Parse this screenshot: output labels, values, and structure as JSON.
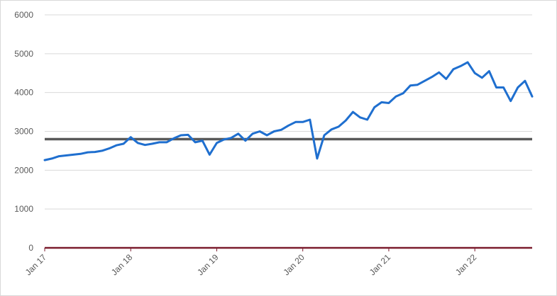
{
  "chart_data": {
    "type": "line",
    "title": "",
    "xlabel": "",
    "ylabel": "",
    "ylim": [
      0,
      6000
    ],
    "yticks": [
      0,
      1000,
      2000,
      3000,
      4000,
      5000,
      6000
    ],
    "xlim": [
      "2017-01",
      "2022-09"
    ],
    "xticks": [
      {
        "label": "Jan 17",
        "x": "2017-01"
      },
      {
        "label": "Jan 18",
        "x": "2018-01"
      },
      {
        "label": "Jan 19",
        "x": "2019-01"
      },
      {
        "label": "Jan 20",
        "x": "2020-01"
      },
      {
        "label": "Jan 21",
        "x": "2021-01"
      },
      {
        "label": "Jan 22",
        "x": "2022-01"
      }
    ],
    "grid": true,
    "legend": "none",
    "colors": {
      "series": "#1f6fcf",
      "reference": "#595959",
      "zero_line": "#7b1c2e",
      "grid": "#d9d9d9"
    },
    "reference_line": {
      "y": 2800
    },
    "series": [
      {
        "x": [
          "2017-01",
          "2017-02",
          "2017-03",
          "2017-04",
          "2017-05",
          "2017-06",
          "2017-07",
          "2017-08",
          "2017-09",
          "2017-10",
          "2017-11",
          "2017-12",
          "2018-01",
          "2018-02",
          "2018-03",
          "2018-04",
          "2018-05",
          "2018-06",
          "2018-07",
          "2018-08",
          "2018-09",
          "2018-10",
          "2018-11",
          "2018-12",
          "2019-01",
          "2019-02",
          "2019-03",
          "2019-04",
          "2019-05",
          "2019-06",
          "2019-07",
          "2019-08",
          "2019-09",
          "2019-10",
          "2019-11",
          "2019-12",
          "2020-01",
          "2020-02",
          "2020-03",
          "2020-04",
          "2020-05",
          "2020-06",
          "2020-07",
          "2020-08",
          "2020-09",
          "2020-10",
          "2020-11",
          "2020-12",
          "2021-01",
          "2021-02",
          "2021-03",
          "2021-04",
          "2021-05",
          "2021-06",
          "2021-07",
          "2021-08",
          "2021-09",
          "2021-10",
          "2021-11",
          "2021-12",
          "2022-01",
          "2022-02",
          "2022-03",
          "2022-04",
          "2022-05",
          "2022-06",
          "2022-07",
          "2022-08",
          "2022-09"
        ],
        "values": [
          2260,
          2300,
          2360,
          2380,
          2400,
          2420,
          2460,
          2470,
          2500,
          2560,
          2640,
          2680,
          2850,
          2700,
          2650,
          2680,
          2720,
          2720,
          2820,
          2900,
          2910,
          2720,
          2760,
          2400,
          2700,
          2790,
          2830,
          2940,
          2760,
          2940,
          3000,
          2900,
          3000,
          3040,
          3150,
          3240,
          3240,
          3300,
          2300,
          2900,
          3050,
          3120,
          3280,
          3500,
          3360,
          3300,
          3620,
          3750,
          3730,
          3900,
          3980,
          4180,
          4200,
          4300,
          4400,
          4520,
          4350,
          4600,
          4680,
          4780,
          4500,
          4380,
          4550,
          4130,
          4130,
          3780,
          4130,
          4300,
          3900
        ]
      }
    ]
  }
}
